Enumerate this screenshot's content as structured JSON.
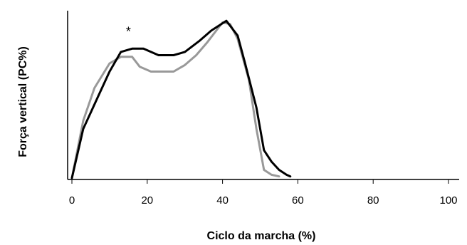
{
  "chart_data": {
    "type": "line",
    "title": "",
    "xlabel": "Ciclo da marcha (%)",
    "ylabel": "Força vertical (PC%)",
    "xlim": [
      0,
      100
    ],
    "x_ticks": [
      0,
      20,
      40,
      60,
      80,
      100
    ],
    "x_tick_labels": [
      "0",
      "20",
      "40",
      "60",
      "80",
      "100"
    ],
    "ylim": [
      0,
      100
    ],
    "y_ticks_shown": false,
    "grid": false,
    "legend": "none",
    "annotations": [
      {
        "text": "*",
        "x": 15,
        "y": 92
      }
    ],
    "series": [
      {
        "color": "#000000",
        "points": [
          [
            0,
            0
          ],
          [
            3,
            30
          ],
          [
            7,
            50
          ],
          [
            10,
            65
          ],
          [
            13,
            77
          ],
          [
            16,
            79
          ],
          [
            19,
            79
          ],
          [
            23,
            75
          ],
          [
            27,
            75
          ],
          [
            30,
            77
          ],
          [
            34,
            84
          ],
          [
            37,
            90
          ],
          [
            39,
            93
          ],
          [
            41,
            96
          ],
          [
            44,
            87
          ],
          [
            46,
            70
          ],
          [
            49,
            43
          ],
          [
            51,
            17
          ],
          [
            53,
            10
          ],
          [
            55,
            5
          ],
          [
            57,
            2
          ],
          [
            58,
            1
          ]
        ]
      },
      {
        "color": "#999999",
        "points": [
          [
            0,
            0
          ],
          [
            3,
            35
          ],
          [
            6,
            55
          ],
          [
            10,
            70
          ],
          [
            13,
            74
          ],
          [
            16,
            74
          ],
          [
            18,
            68
          ],
          [
            21,
            65
          ],
          [
            24,
            65
          ],
          [
            27,
            65
          ],
          [
            30,
            69
          ],
          [
            33,
            75
          ],
          [
            36,
            83
          ],
          [
            40,
            95
          ],
          [
            42,
            94
          ],
          [
            44,
            85
          ],
          [
            47,
            60
          ],
          [
            49,
            30
          ],
          [
            51,
            5
          ],
          [
            53,
            2
          ],
          [
            55,
            1
          ]
        ]
      }
    ]
  }
}
